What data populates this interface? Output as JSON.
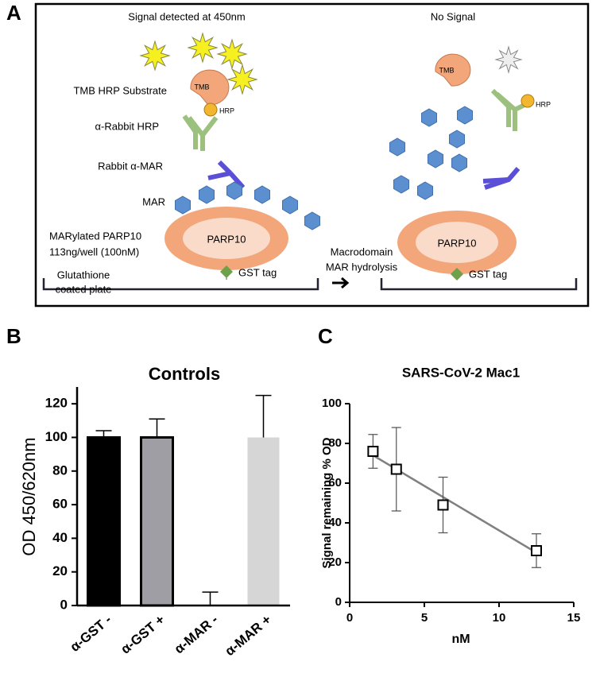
{
  "diagram": {
    "panel": "A",
    "labels": [
      "Signal detected at 450nm",
      "No Signal",
      "TMB HRP Substrate",
      "α-Rabbit HRP",
      "Rabbit α-MAR",
      "MAR",
      "MARylated PARP10",
      "113ng/well (100nM)",
      "PARP10",
      "GST tag",
      "Glutathione",
      "coated plate",
      "Macrodomain",
      "MAR hydrolysis",
      "PARP10",
      "GST tag",
      "TMB",
      "HRP",
      "TMB",
      "HRP"
    ]
  },
  "chart_data": [
    {
      "panel": "B",
      "type": "bar",
      "title": "Controls",
      "ylabel": "OD 450/620nm",
      "categories": [
        "α-GST -",
        "α-GST +",
        "α-MAR -",
        "α-MAR +"
      ],
      "values": [
        100,
        100,
        0,
        100
      ],
      "errors": [
        4,
        11,
        8,
        25
      ],
      "colors": [
        "#000000",
        "#9e9ea4",
        "none",
        "#d6d6d6"
      ],
      "edgecolors": [
        "#000000",
        "#000000",
        "none",
        "none"
      ],
      "ylim": [
        0,
        130
      ],
      "yticks": [
        0,
        20,
        40,
        60,
        80,
        100,
        120
      ]
    },
    {
      "panel": "C",
      "type": "scatter",
      "title": "SARS-CoV-2 Mac1",
      "xlabel": "nM",
      "ylabel": "Signal remaining % OD",
      "x": [
        1.5625,
        3.125,
        6.25,
        12.5
      ],
      "values": [
        76,
        67,
        49,
        26
      ],
      "errors": [
        8.5,
        21,
        14,
        8.5
      ],
      "color": "#000000",
      "fit": {
        "x": [
          1.5625,
          12.5
        ],
        "values": [
          74,
          25
        ],
        "color": "#808080"
      },
      "xlim": [
        0,
        15
      ],
      "xticks": [
        0,
        5,
        10,
        15
      ],
      "ylim": [
        0,
        100
      ],
      "yticks": [
        0,
        20,
        40,
        60,
        80,
        100
      ]
    }
  ]
}
